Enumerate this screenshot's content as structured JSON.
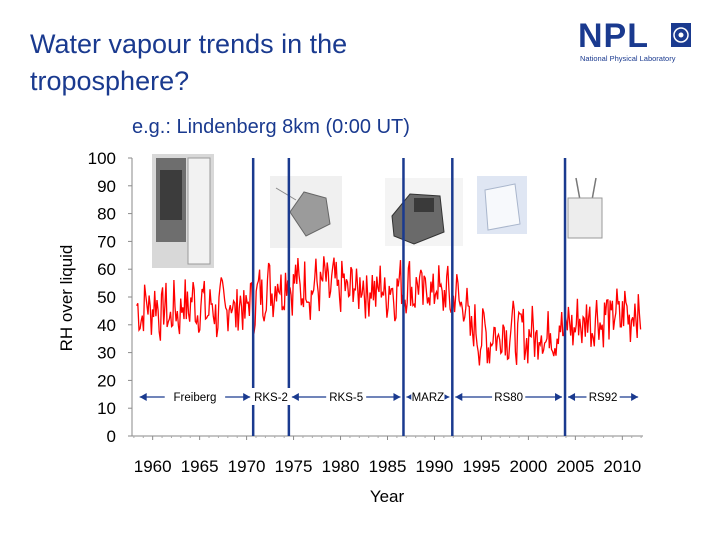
{
  "slide": {
    "title": "Water vapour trends in the troposphere?",
    "subtitle": "e.g.: Lindenberg 8km (0:00 UT)"
  },
  "logo": {
    "word": "NPL",
    "caption": "National Physical Laboratory"
  },
  "chart_data": {
    "type": "line",
    "title": "",
    "xlabel": "Year",
    "ylabel": "RH over liquid",
    "xlim": [
      1957.8,
      2012.2
    ],
    "ylim": [
      0,
      100
    ],
    "x_ticks": [
      1960,
      1965,
      1970,
      1975,
      1980,
      1985,
      1990,
      1995,
      2000,
      2005,
      2010
    ],
    "y_ticks": [
      0,
      10,
      20,
      30,
      40,
      50,
      60,
      70,
      80,
      90,
      100
    ],
    "grid": false,
    "series": [
      {
        "color": "#ff0000",
        "x": [
          1958.3,
          1959.0,
          1960.0,
          1961.0,
          1962.0,
          1963.0,
          1964.0,
          1965.0,
          1966.0,
          1967.0,
          1968.0,
          1969.0,
          1970.0,
          1971.0,
          1972.0,
          1973.0,
          1974.0,
          1975.0,
          1976.0,
          1977.0,
          1978.0,
          1979.0,
          1980.0,
          1981.0,
          1982.0,
          1983.0,
          1984.0,
          1985.0,
          1986.0,
          1987.0,
          1988.0,
          1989.0,
          1990.0,
          1991.0,
          1992.0,
          1993.0,
          1994.0,
          1995.0,
          1996.0,
          1997.0,
          1998.0,
          1999.0,
          2000.0,
          2001.0,
          2002.0,
          2003.0,
          2004.0,
          2005.0,
          2006.0,
          2007.0,
          2008.0,
          2009.0,
          2010.0,
          2011.0,
          2012.0
        ],
        "y": [
          44,
          46,
          47,
          45,
          44,
          46,
          48,
          47,
          46,
          45,
          47,
          46,
          46,
          49,
          53,
          54,
          55,
          55,
          54,
          53,
          55,
          54,
          53,
          53,
          54,
          52,
          53,
          52,
          53,
          54,
          53,
          52,
          53,
          51,
          50,
          49,
          38,
          36,
          35,
          37,
          38,
          37,
          36,
          37,
          36,
          38,
          39,
          40,
          41,
          42,
          42,
          43,
          44,
          44,
          45
        ]
      }
    ],
    "segments": [
      {
        "label": "Freiberg",
        "start": 1958.3,
        "end": 1970.7
      },
      {
        "label": "RKS-2",
        "start": 1970.7,
        "end": 1974.5
      },
      {
        "label": "RKS-5",
        "start": 1974.5,
        "end": 1986.7
      },
      {
        "label": "MARZ",
        "start": 1986.7,
        "end": 1991.9
      },
      {
        "label": "RS80",
        "start": 1991.9,
        "end": 2003.9
      },
      {
        "label": "RS92",
        "start": 2003.9,
        "end": 2012.0
      }
    ],
    "change_years": [
      1970.7,
      1974.5,
      1986.7,
      1991.9,
      2003.9
    ]
  }
}
